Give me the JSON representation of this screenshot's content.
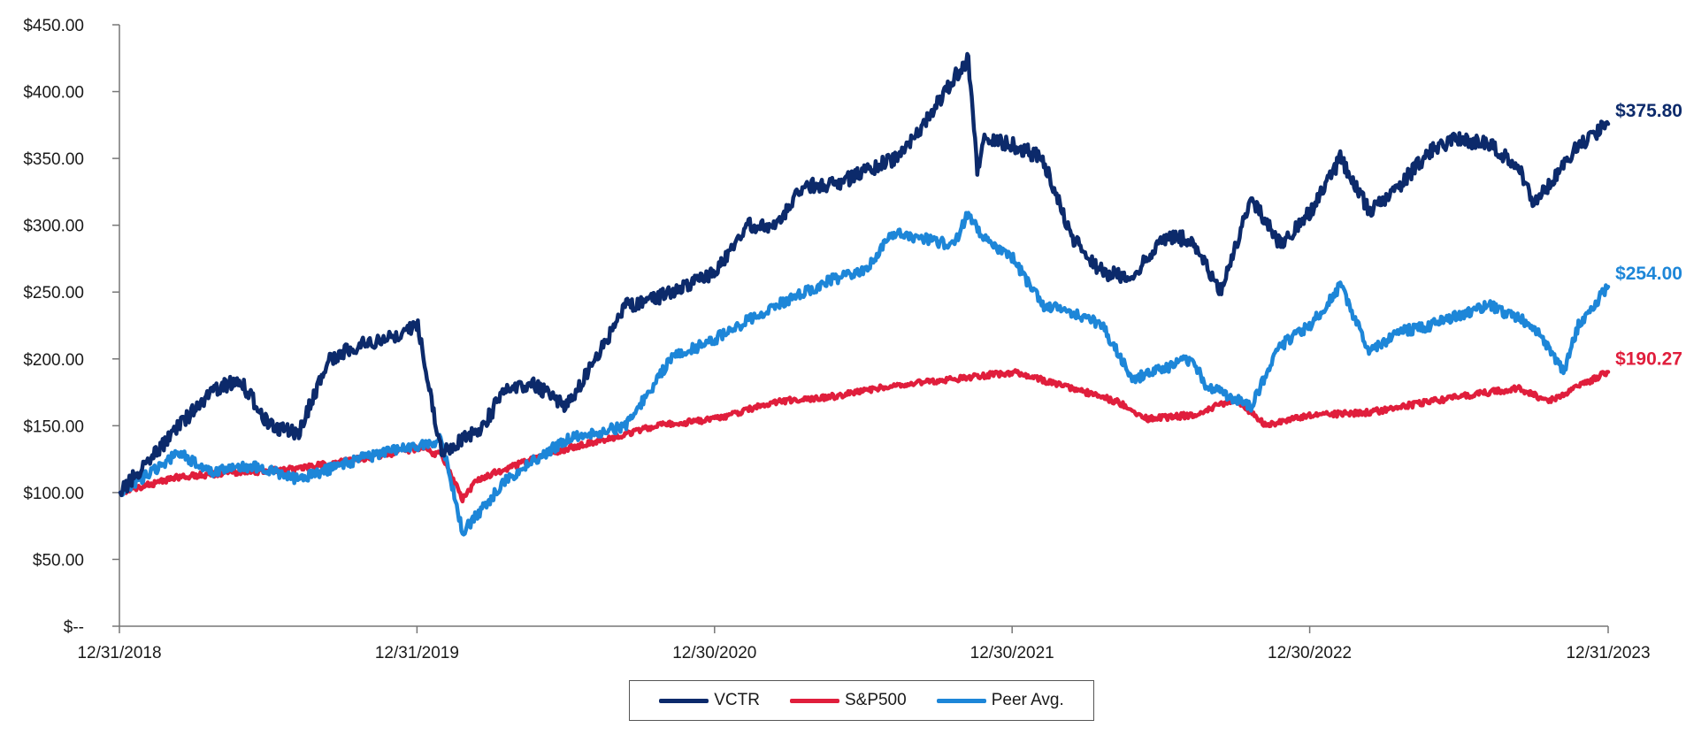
{
  "chart_data": {
    "type": "line",
    "title": "",
    "xlabel": "",
    "ylabel": "",
    "ylim": [
      0,
      450
    ],
    "y_ticks": [
      {
        "value": 0,
        "label": "$--"
      },
      {
        "value": 50,
        "label": "$50.00"
      },
      {
        "value": 100,
        "label": "$100.00"
      },
      {
        "value": 150,
        "label": "$150.00"
      },
      {
        "value": 200,
        "label": "$200.00"
      },
      {
        "value": 250,
        "label": "$250.00"
      },
      {
        "value": 300,
        "label": "$300.00"
      },
      {
        "value": 350,
        "label": "$350.00"
      },
      {
        "value": 400,
        "label": "$400.00"
      },
      {
        "value": 450,
        "label": "$450.00"
      }
    ],
    "x_range": [
      2018.997,
      2024.0
    ],
    "x_ticks": [
      {
        "value": 2018.997,
        "label": "12/31/2018"
      },
      {
        "value": 2019.997,
        "label": "12/31/2019"
      },
      {
        "value": 2020.997,
        "label": "12/30/2020"
      },
      {
        "value": 2021.997,
        "label": "12/30/2021"
      },
      {
        "value": 2022.997,
        "label": "12/30/2022"
      },
      {
        "value": 2024.0,
        "label": "12/31/2023"
      }
    ],
    "grid": false,
    "legend_position": "bottom-center",
    "series": [
      {
        "name": "VCTR",
        "color": "#0c2a6b",
        "end_label": "$375.80",
        "x": [
          2019.0,
          2019.1,
          2019.2,
          2019.3,
          2019.4,
          2019.5,
          2019.6,
          2019.7,
          2019.8,
          2019.9,
          2020.0,
          2020.08,
          2020.15,
          2020.22,
          2020.3,
          2020.4,
          2020.5,
          2020.6,
          2020.7,
          2020.8,
          2020.9,
          2021.0,
          2021.1,
          2021.2,
          2021.3,
          2021.4,
          2021.5,
          2021.6,
          2021.7,
          2021.8,
          2021.85,
          2021.88,
          2021.9,
          2022.0,
          2022.1,
          2022.2,
          2022.3,
          2022.4,
          2022.5,
          2022.6,
          2022.7,
          2022.8,
          2022.9,
          2023.0,
          2023.1,
          2023.2,
          2023.3,
          2023.4,
          2023.5,
          2023.6,
          2023.7,
          2023.75,
          2023.8,
          2023.9,
          2024.0
        ],
        "y": [
          100,
          125,
          150,
          175,
          185,
          150,
          145,
          200,
          210,
          215,
          225,
          130,
          140,
          150,
          180,
          180,
          165,
          200,
          240,
          245,
          255,
          265,
          300,
          300,
          330,
          330,
          340,
          350,
          375,
          410,
          425,
          340,
          365,
          360,
          350,
          290,
          265,
          260,
          290,
          290,
          250,
          320,
          285,
          310,
          350,
          310,
          330,
          355,
          365,
          360,
          345,
          315,
          330,
          360,
          375.8
        ]
      },
      {
        "name": "S&P500",
        "color": "#e01e3c",
        "end_label": "$190.27",
        "x": [
          2019.0,
          2019.2,
          2019.4,
          2019.6,
          2019.8,
          2020.0,
          2020.08,
          2020.15,
          2020.2,
          2020.3,
          2020.45,
          2020.6,
          2020.8,
          2021.0,
          2021.2,
          2021.4,
          2021.6,
          2021.8,
          2022.0,
          2022.2,
          2022.35,
          2022.45,
          2022.6,
          2022.75,
          2022.85,
          2023.0,
          2023.2,
          2023.4,
          2023.6,
          2023.7,
          2023.8,
          2024.0
        ],
        "y": [
          100,
          112,
          115,
          118,
          125,
          133,
          128,
          95,
          110,
          118,
          130,
          138,
          150,
          155,
          168,
          172,
          180,
          185,
          190,
          178,
          168,
          155,
          158,
          170,
          150,
          158,
          160,
          168,
          175,
          178,
          168,
          190.27
        ]
      },
      {
        "name": "Peer Avg.",
        "color": "#1d86d8",
        "end_label": "$254.00",
        "x": [
          2019.0,
          2019.1,
          2019.2,
          2019.3,
          2019.45,
          2019.6,
          2019.8,
          2020.0,
          2020.08,
          2020.15,
          2020.3,
          2020.5,
          2020.7,
          2020.85,
          2021.0,
          2021.2,
          2021.4,
          2021.5,
          2021.6,
          2021.8,
          2021.85,
          2021.9,
          2022.0,
          2022.1,
          2022.2,
          2022.3,
          2022.4,
          2022.6,
          2022.65,
          2022.8,
          2022.9,
          2023.0,
          2023.1,
          2023.2,
          2023.3,
          2023.4,
          2023.6,
          2023.75,
          2023.85,
          2023.9,
          2024.0
        ],
        "y": [
          100,
          115,
          130,
          115,
          120,
          110,
          125,
          135,
          140,
          70,
          110,
          140,
          150,
          200,
          215,
          240,
          260,
          265,
          295,
          285,
          310,
          290,
          275,
          240,
          235,
          225,
          185,
          200,
          180,
          165,
          210,
          225,
          255,
          205,
          220,
          225,
          240,
          225,
          190,
          225,
          254
        ]
      }
    ]
  }
}
